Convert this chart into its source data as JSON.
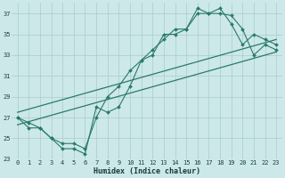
{
  "xlabel": "Humidex (Indice chaleur)",
  "bg_color": "#cce8e8",
  "grid_color": "#aacccc",
  "line_color": "#2a7a6a",
  "xlim": [
    -0.5,
    23.5
  ],
  "ylim": [
    23,
    38
  ],
  "xticks": [
    0,
    1,
    2,
    3,
    4,
    5,
    6,
    7,
    8,
    9,
    10,
    11,
    12,
    13,
    14,
    15,
    16,
    17,
    18,
    19,
    20,
    21,
    22,
    23
  ],
  "yticks": [
    23,
    25,
    27,
    29,
    31,
    33,
    35,
    37
  ],
  "series1_x": [
    0,
    1,
    2,
    3,
    4,
    5,
    6,
    7,
    8,
    9,
    10,
    11,
    12,
    13,
    14,
    15,
    16,
    17,
    18,
    19,
    20,
    21,
    22,
    23
  ],
  "series1_y": [
    27,
    26,
    26,
    25,
    24,
    24,
    23.5,
    28,
    27.5,
    28,
    30,
    32.5,
    33,
    35,
    35,
    35.5,
    37.5,
    37,
    37,
    36.8,
    35.5,
    33,
    34,
    33.5
  ],
  "series2_x": [
    0,
    1,
    2,
    3,
    4,
    5,
    6,
    7,
    8,
    9,
    10,
    11,
    12,
    13,
    14,
    15,
    16,
    17,
    18,
    19,
    20,
    21,
    22,
    23
  ],
  "series2_y": [
    27,
    26.5,
    26,
    25,
    24.5,
    24.5,
    24,
    27,
    29,
    30,
    31.5,
    32.5,
    33.5,
    34.5,
    35.5,
    35.5,
    37,
    37,
    37.5,
    36,
    34,
    35,
    34.5,
    34
  ],
  "series3_x": [
    0,
    23
  ],
  "series3_y": [
    26.3,
    33.3
  ],
  "series4_x": [
    0,
    23
  ],
  "series4_y": [
    27.5,
    34.5
  ],
  "xlabel_fontsize": 6,
  "tick_fontsize": 5
}
